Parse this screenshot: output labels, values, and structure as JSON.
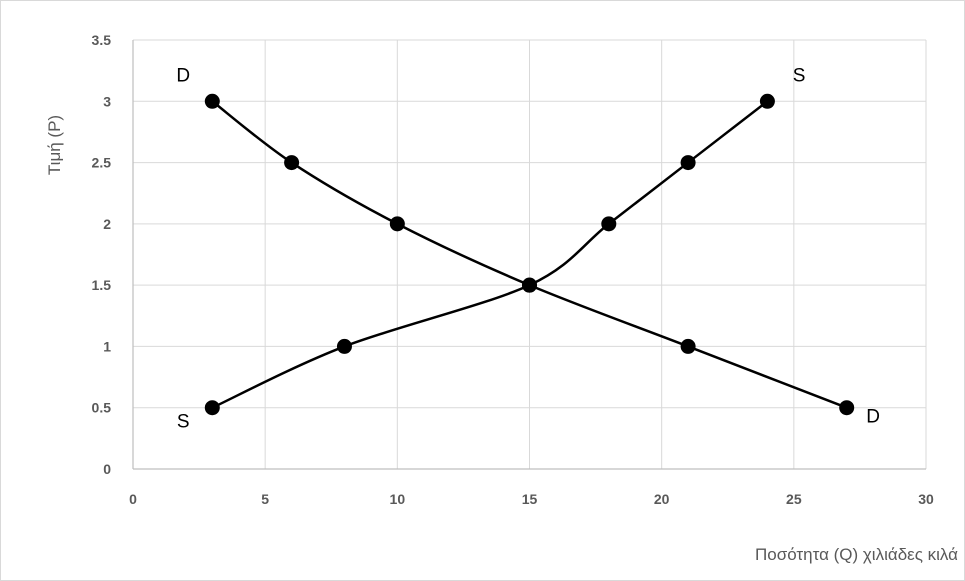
{
  "chart_data": {
    "type": "scatter",
    "title": "",
    "xlabel": "Ποσότητα (Q) χιλιάδες κιλά",
    "ylabel": "Τιμή (P)",
    "xlim": [
      0,
      30
    ],
    "ylim": [
      0,
      3.5
    ],
    "xticks": [
      "0",
      "5",
      "10",
      "15",
      "20",
      "25",
      "30"
    ],
    "yticks": [
      "0",
      "0.5",
      "1",
      "1.5",
      "2",
      "2.5",
      "3",
      "3.5"
    ],
    "grid": true,
    "smooth_lines": true,
    "series": [
      {
        "x": [
          3,
          6,
          10,
          15,
          21,
          27
        ],
        "y": [
          3,
          2.5,
          2,
          1.5,
          1,
          0.5
        ]
      },
      {
        "x": [
          3,
          8,
          15,
          18,
          21,
          24
        ],
        "y": [
          0.5,
          1,
          1.5,
          2,
          2.5,
          3
        ]
      }
    ],
    "annotations": [
      {
        "text": "D",
        "x": 1.9,
        "y": 3.16
      },
      {
        "text": "S",
        "x": 25.2,
        "y": 3.16
      },
      {
        "text": "S",
        "x": 1.9,
        "y": 0.34
      },
      {
        "text": "D",
        "x": 28.0,
        "y": 0.38
      }
    ],
    "colors": {
      "line": "#000000",
      "marker": "#000000",
      "grid": "#d9d9d9",
      "axis": "#bfbfbf",
      "tick_text": "#595959",
      "frame": "#d9d9d9"
    }
  }
}
